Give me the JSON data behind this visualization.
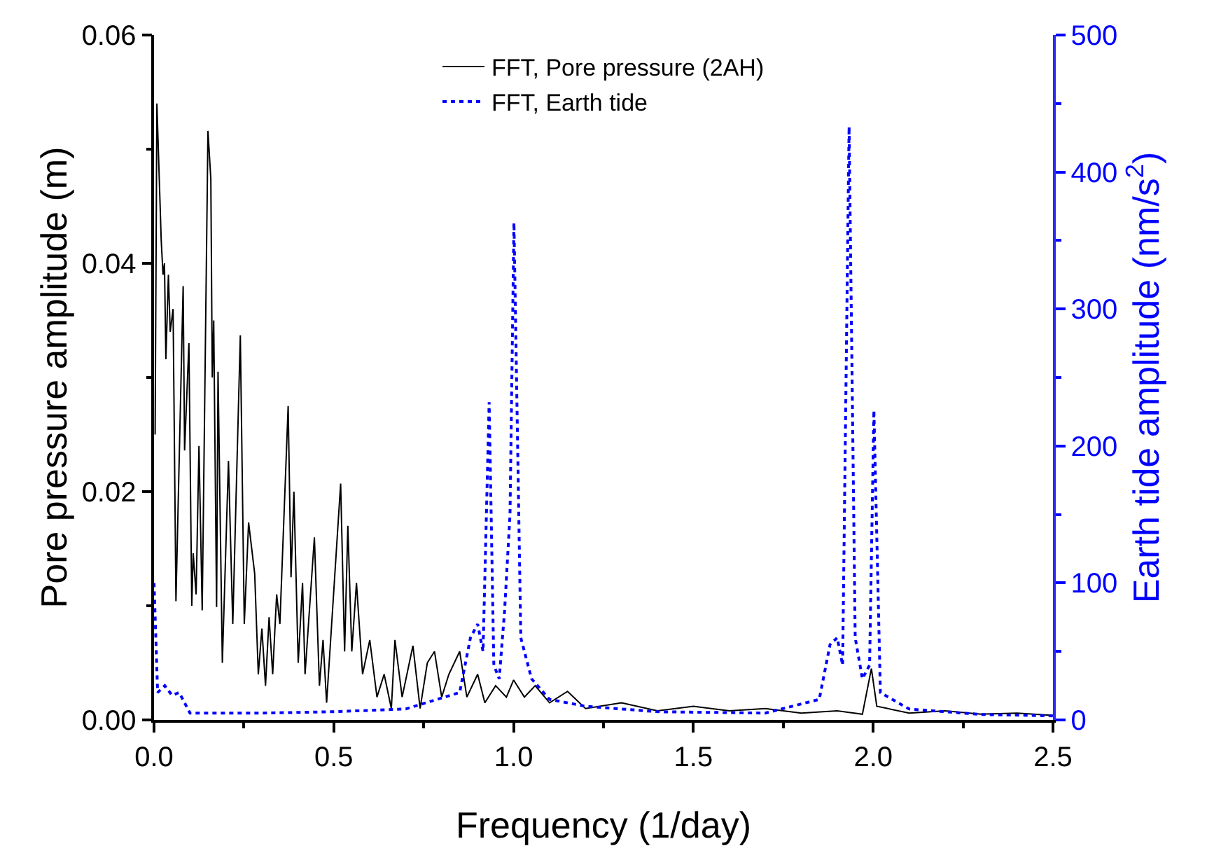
{
  "chart_data": {
    "type": "line",
    "xlabel": "Frequency (1/day)",
    "ylabel": "Pore pressure amplitude (m)",
    "y2label": "Earth tide amplitude (nm/s$^{2}$)",
    "xlim": [
      0,
      2.5
    ],
    "xticks": [
      {
        "value": 0,
        "label": "0.0"
      },
      {
        "value": 0.25,
        "label": null
      },
      {
        "value": 0.5,
        "label": "0.5"
      },
      {
        "value": 0.75,
        "label": null
      },
      {
        "value": 1,
        "label": "1.0"
      },
      {
        "value": 1.25,
        "label": null
      },
      {
        "value": 1.5,
        "label": "1.5"
      },
      {
        "value": 1.75,
        "label": null
      },
      {
        "value": 2,
        "label": "2.0"
      },
      {
        "value": 2.25,
        "label": null
      },
      {
        "value": 2.5,
        "label": "2.5"
      }
    ],
    "ylim": [
      0,
      0.06
    ],
    "yticks": [
      {
        "value": 0,
        "label": "0.00"
      },
      {
        "value": 0.01,
        "label": null
      },
      {
        "value": 0.02,
        "label": "0.02"
      },
      {
        "value": 0.03,
        "label": null
      },
      {
        "value": 0.04,
        "label": "0.04"
      },
      {
        "value": 0.05,
        "label": null
      },
      {
        "value": 0.06,
        "label": "0.06"
      }
    ],
    "y2lim": [
      0,
      500
    ],
    "y2ticks": [
      0,
      {
        "value": 50,
        "label": null
      },
      100,
      {
        "value": 150,
        "label": null
      },
      200,
      {
        "value": 250,
        "label": null
      },
      300,
      {
        "value": 350,
        "label": null
      },
      400,
      {
        "value": 450,
        "label": null
      },
      500
    ],
    "grid": false,
    "legend": "top",
    "marker": "none",
    "series": [
      {
        "name": "FFT, Pore pressure (2AH)",
        "color": "#000000",
        "line_style": "solid",
        "x": [
          0.003,
          0.008,
          0.02,
          0.025,
          0.029,
          0.033,
          0.04,
          0.045,
          0.053,
          0.061,
          0.081,
          0.085,
          0.097,
          0.105,
          0.109,
          0.117,
          0.125,
          0.134,
          0.15,
          0.158,
          0.162,
          0.166,
          0.174,
          0.178,
          0.19,
          0.207,
          0.219,
          0.24,
          0.251,
          0.263,
          0.28,
          0.29,
          0.3,
          0.31,
          0.32,
          0.33,
          0.341,
          0.35,
          0.373,
          0.381,
          0.389,
          0.401,
          0.413,
          0.42,
          0.446,
          0.46,
          0.47,
          0.48,
          0.519,
          0.53,
          0.539,
          0.55,
          0.563,
          0.58,
          0.6,
          0.62,
          0.64,
          0.66,
          0.67,
          0.69,
          0.72,
          0.74,
          0.76,
          0.78,
          0.8,
          0.82,
          0.85,
          0.87,
          0.9,
          0.92,
          0.95,
          0.98,
          1.0,
          1.03,
          1.06,
          1.1,
          1.15,
          1.2,
          1.3,
          1.4,
          1.5,
          1.6,
          1.7,
          1.8,
          1.9,
          1.97,
          1.995,
          2.01,
          2.1,
          2.2,
          2.3,
          2.4,
          2.5
        ],
        "values": [
          0.025,
          0.054,
          0.042,
          0.039,
          0.04,
          0.0316,
          0.039,
          0.034,
          0.036,
          0.0104,
          0.038,
          0.0236,
          0.033,
          0.01,
          0.0146,
          0.011,
          0.024,
          0.0096,
          0.0516,
          0.0474,
          0.03,
          0.035,
          0.0099,
          0.0305,
          0.005,
          0.0227,
          0.0084,
          0.0337,
          0.0084,
          0.0173,
          0.0128,
          0.004,
          0.008,
          0.003,
          0.009,
          0.004,
          0.011,
          0.0084,
          0.0275,
          0.0125,
          0.02,
          0.005,
          0.012,
          0.004,
          0.016,
          0.003,
          0.007,
          0.0015,
          0.0207,
          0.006,
          0.017,
          0.006,
          0.012,
          0.004,
          0.007,
          0.002,
          0.004,
          0.001,
          0.007,
          0.002,
          0.0065,
          0.001,
          0.005,
          0.006,
          0.002,
          0.004,
          0.006,
          0.002,
          0.004,
          0.0015,
          0.003,
          0.002,
          0.0035,
          0.002,
          0.003,
          0.0015,
          0.0025,
          0.001,
          0.0015,
          0.0008,
          0.0012,
          0.0008,
          0.001,
          0.0006,
          0.0008,
          0.0005,
          0.0045,
          0.0012,
          0.0006,
          0.0008,
          0.0005,
          0.0006,
          0.0004
        ]
      },
      {
        "name": "FFT, Earth tide",
        "color": "#0000ff",
        "line_style": "dotted",
        "axis": "y2",
        "x": [
          0,
          0.01,
          0.03,
          0.05,
          0.07,
          0.1,
          0.3,
          0.5,
          0.7,
          0.85,
          0.88,
          0.9,
          0.915,
          0.932,
          0.945,
          0.96,
          0.975,
          0.99,
          1.001,
          1.02,
          1.05,
          1.1,
          1.2,
          1.4,
          1.7,
          1.85,
          1.88,
          1.9,
          1.915,
          1.933,
          1.95,
          1.97,
          1.99,
          2.002,
          2.02,
          2.1,
          2.3,
          2.5
        ],
        "values": [
          100,
          20,
          25,
          18,
          20,
          5,
          5,
          6,
          8,
          20,
          60,
          70,
          50,
          232,
          40,
          30,
          80,
          150,
          363,
          60,
          30,
          15,
          10,
          6,
          5,
          15,
          55,
          60,
          40,
          433,
          60,
          30,
          40,
          226,
          20,
          8,
          4,
          3
        ]
      }
    ]
  }
}
